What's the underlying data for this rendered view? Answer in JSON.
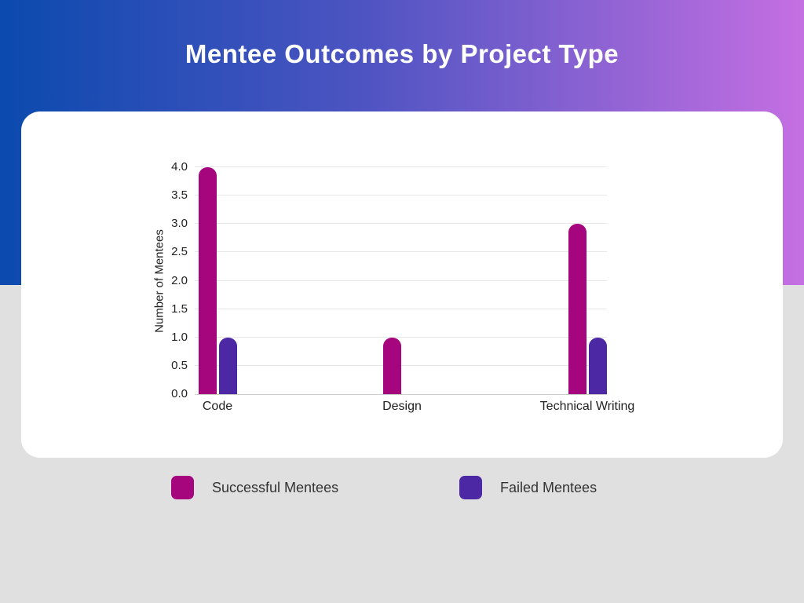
{
  "header": {
    "title": "Mentee Outcomes by Project Type",
    "gradient_start": "#0b4aae",
    "gradient_end": "#c56fe2"
  },
  "colors": {
    "page_background": "#e0e0e0",
    "card_background": "#ffffff",
    "successful": "#a5067e",
    "failed": "#4c28a4",
    "grid": "#e7e7e7",
    "axis_line": "#cccccc",
    "tick_text": "#222222"
  },
  "chart_data": {
    "type": "bar",
    "title": "Mentee Outcomes by Project Type",
    "categories": [
      "Code",
      "Design",
      "Technical Writing"
    ],
    "series": [
      {
        "name": "Successful Mentees",
        "color": "#a5067e",
        "values": [
          4,
          1,
          3
        ]
      },
      {
        "name": "Failed Mentees",
        "color": "#4c28a4",
        "values": [
          1,
          0,
          1
        ]
      }
    ],
    "xlabel": "",
    "ylabel": "Number of Mentees",
    "ylim": [
      0,
      4
    ],
    "y_ticks": [
      "0.0",
      "0.5",
      "1.0",
      "1.5",
      "2.0",
      "2.5",
      "3.0",
      "3.5",
      "4.0"
    ],
    "grid": true,
    "legend_position": "bottom"
  }
}
